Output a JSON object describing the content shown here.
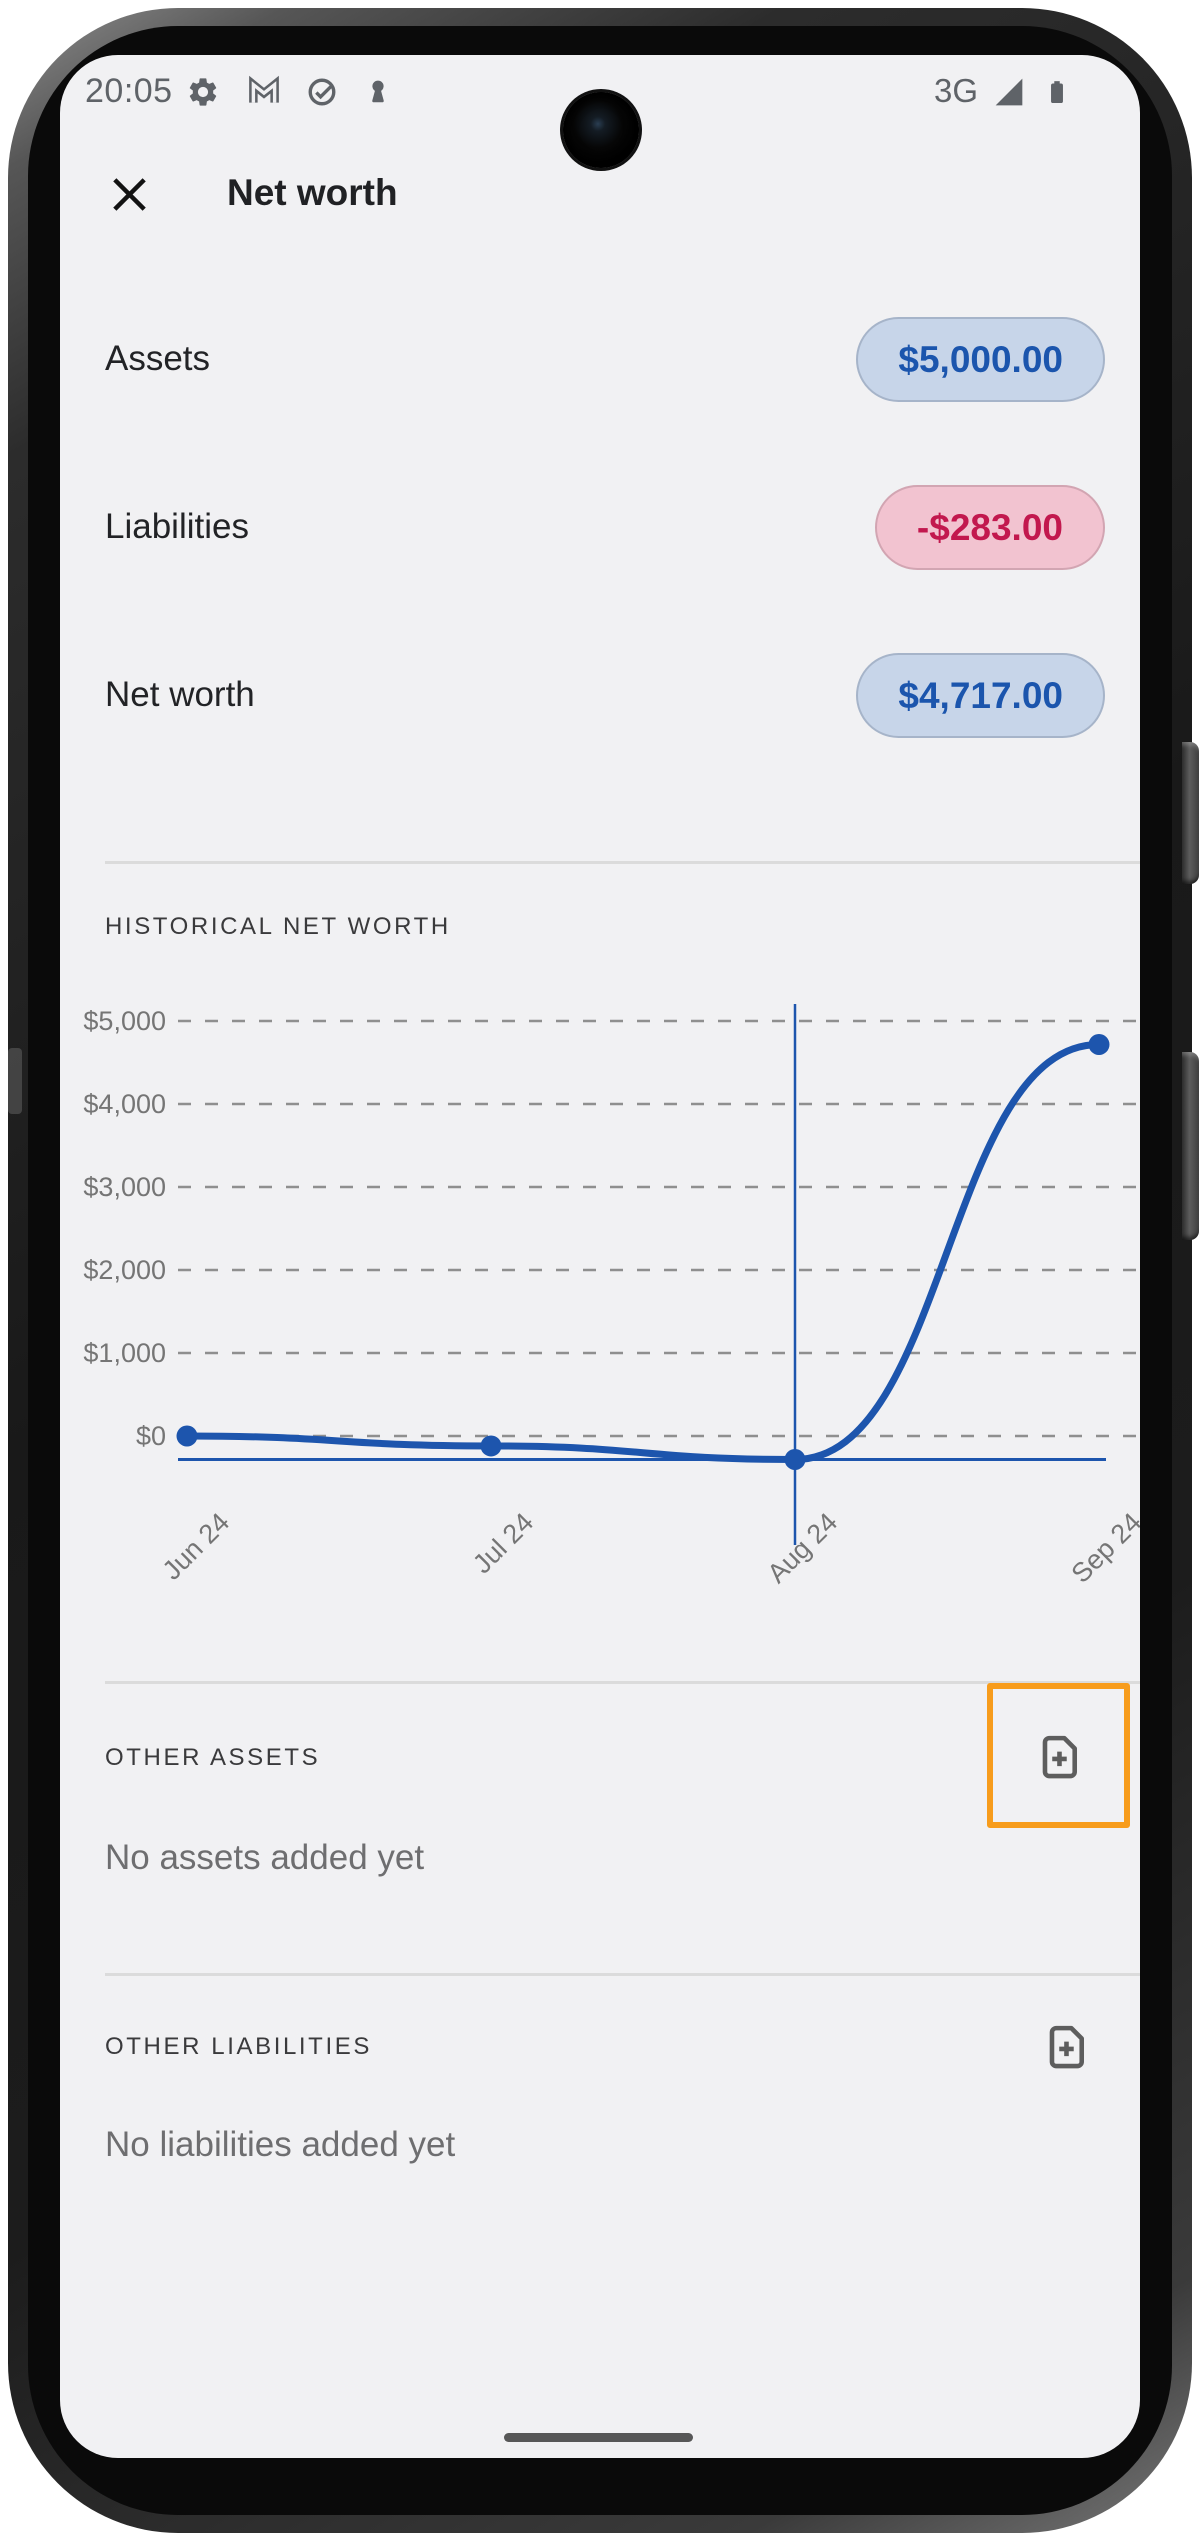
{
  "status_bar": {
    "time": "20:05",
    "network": "3G",
    "left_icons": [
      "settings-gear",
      "gmail",
      "check-circle",
      "keyhole"
    ],
    "right_icons": [
      "signal-strength-triangle",
      "battery-full"
    ]
  },
  "header": {
    "title": "Net worth"
  },
  "summary_rows": [
    {
      "label": "Assets",
      "value": "$5,000.00",
      "variant": "blue"
    },
    {
      "label": "Liabilities",
      "value": "-$283.00",
      "variant": "pink"
    },
    {
      "label": "Net worth",
      "value": "$4,717.00",
      "variant": "blue"
    }
  ],
  "history": {
    "section_title": "HISTORICAL NET WORTH"
  },
  "chart_data": {
    "type": "line",
    "x": [
      "Jun 24",
      "Jul 24",
      "Aug 24",
      "Sep 24"
    ],
    "series": [
      {
        "name": "Net worth",
        "values": [
          0,
          -120,
          -283,
          4717
        ]
      }
    ],
    "y_ticks": [
      {
        "label": "$5,000",
        "value": 5000
      },
      {
        "label": "$4,000",
        "value": 4000
      },
      {
        "label": "$3,000",
        "value": 3000
      },
      {
        "label": "$2,000",
        "value": 2000
      },
      {
        "label": "$1,000",
        "value": 1000
      },
      {
        "label": "$0",
        "value": 0
      }
    ],
    "ylim": [
      -283,
      5000
    ],
    "grid": "dashed-horizontal",
    "legend": "none",
    "selected_index": 2,
    "selected_x": "Aug 24"
  },
  "other_assets": {
    "section_title": "OTHER ASSETS",
    "empty_text": "No assets added yet",
    "add_icon": "note-add"
  },
  "other_liabilities": {
    "section_title": "OTHER LIABILITIES",
    "empty_text": "No liabilities added yet",
    "add_icon": "note-add"
  },
  "colors": {
    "accent_blue": "#1d55ad",
    "pill_blue_bg": "#c7d5e9",
    "pill_blue_text": "#1b55ad",
    "pill_pink_bg": "#f2c3d0",
    "pill_pink_text": "#c2184e",
    "highlight_orange": "#f79c1c",
    "divider": "#dbdbdb",
    "grid_dash": "#8f8f8f",
    "axis_label": "#757575",
    "icon_gray": "#5d5d5d",
    "status_gray": "#5f6368",
    "screen_bg": "#f1f1f3"
  }
}
